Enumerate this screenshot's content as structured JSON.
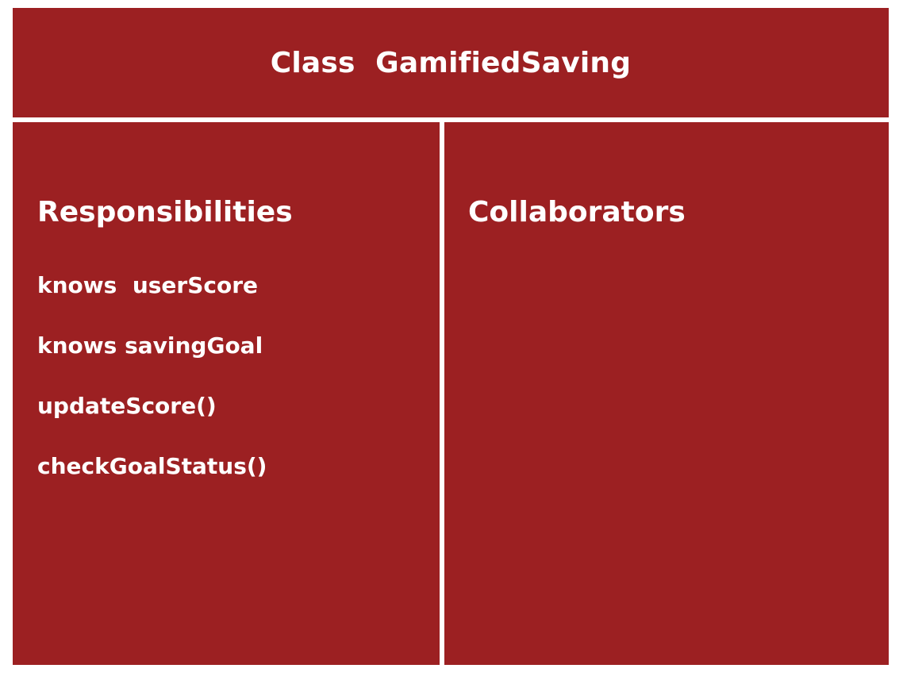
{
  "card": {
    "title": "Class  GamifiedSaving",
    "responsibilities": {
      "heading": "Responsibilities",
      "items": [
        "knows  userScore",
        "knows savingGoal",
        "updateScore()",
        "checkGoalStatus()"
      ]
    },
    "collaborators": {
      "heading": "Collaborators",
      "items": []
    }
  },
  "colors": {
    "panel": "#9c2022",
    "text": "#ffffff",
    "divider": "#ffffff"
  }
}
